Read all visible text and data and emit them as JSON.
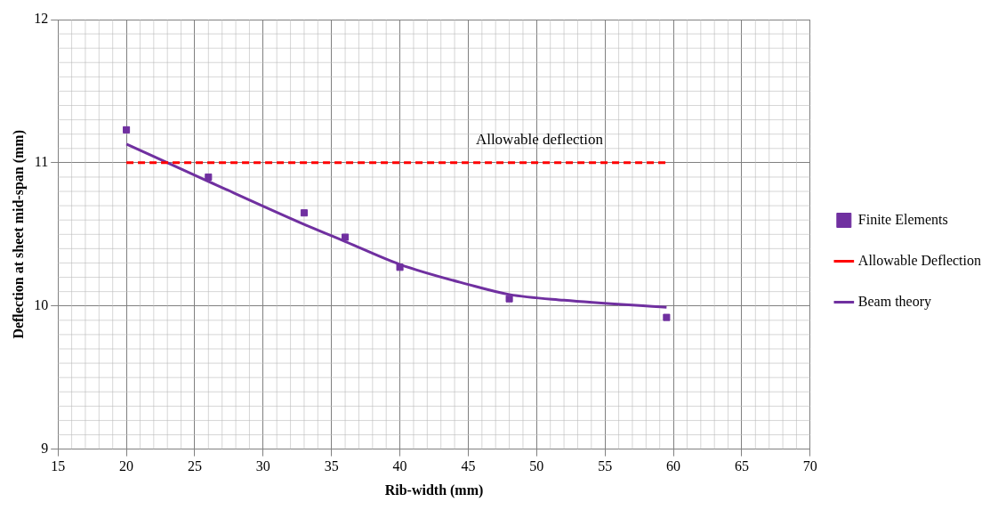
{
  "chart_data": {
    "type": "line",
    "xlabel": "Rib-width (mm)",
    "ylabel": "Deflection at sheet mid-span (mm)",
    "xlim": [
      15,
      70
    ],
    "xticks": [
      15,
      20,
      25,
      30,
      35,
      40,
      45,
      50,
      55,
      60,
      65,
      70
    ],
    "ylim": [
      9,
      12
    ],
    "yticks": [
      9,
      10,
      11,
      12
    ],
    "grid": true,
    "legend": "right",
    "annotations": [
      "Allowable deflection"
    ],
    "series": [
      {
        "name": "Finite Elements",
        "type": "scatter",
        "marker": "square",
        "color": "#7030a0",
        "x": [
          20,
          26,
          33,
          36,
          40,
          48,
          59.5
        ],
        "values": [
          11.23,
          10.9,
          10.65,
          10.48,
          10.27,
          10.05,
          9.92
        ]
      },
      {
        "name": "Allowable Deflection",
        "type": "line",
        "line_style": "dashed",
        "color": "#ff0000",
        "x": [
          20,
          59.5
        ],
        "values": [
          11,
          11
        ]
      },
      {
        "name": "Beam theory",
        "type": "line",
        "line_style": "solid",
        "color": "#7030a0",
        "x": [
          20,
          26,
          33,
          36,
          40,
          45,
          48,
          52,
          59.5
        ],
        "values": [
          11.13,
          10.87,
          10.57,
          10.45,
          10.29,
          10.15,
          10.08,
          10.04,
          9.99
        ]
      }
    ]
  }
}
